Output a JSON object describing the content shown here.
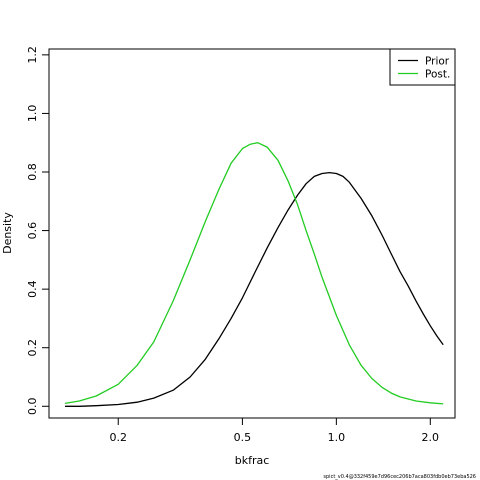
{
  "chart_data": {
    "type": "line",
    "xlabel": "bkfrac",
    "ylabel": "Density",
    "x_scale": "log",
    "xlim": [
      0.12,
      2.4
    ],
    "ylim": [
      -0.04,
      1.22
    ],
    "x_ticks": [
      0.2,
      0.5,
      1.0,
      2.0
    ],
    "x_tick_labels": [
      "0.2",
      "0.5",
      "1.0",
      "2.0"
    ],
    "y_ticks": [
      0,
      0.2,
      0.4,
      0.6,
      0.8,
      1.0,
      1.2
    ],
    "y_tick_labels": [
      "0.0",
      "0.2",
      "0.4",
      "0.6",
      "0.8",
      "1.0",
      "1.2"
    ],
    "grid": false,
    "legend_position": "top-right",
    "series": [
      {
        "name": "Prior",
        "color": "#000000",
        "x": [
          0.135,
          0.15,
          0.17,
          0.2,
          0.23,
          0.26,
          0.3,
          0.34,
          0.38,
          0.42,
          0.46,
          0.5,
          0.55,
          0.6,
          0.65,
          0.7,
          0.75,
          0.8,
          0.85,
          0.9,
          0.95,
          1.0,
          1.05,
          1.1,
          1.2,
          1.3,
          1.4,
          1.5,
          1.6,
          1.7,
          1.8,
          1.9,
          2.0,
          2.1,
          2.2
        ],
        "y": [
          0.0,
          0.0,
          0.002,
          0.006,
          0.014,
          0.028,
          0.055,
          0.1,
          0.16,
          0.23,
          0.3,
          0.37,
          0.46,
          0.54,
          0.61,
          0.67,
          0.72,
          0.76,
          0.785,
          0.795,
          0.798,
          0.795,
          0.785,
          0.765,
          0.71,
          0.65,
          0.585,
          0.52,
          0.46,
          0.41,
          0.36,
          0.315,
          0.275,
          0.24,
          0.21
        ]
      },
      {
        "name": "Post.",
        "color": "#22cc22",
        "x": [
          0.135,
          0.15,
          0.17,
          0.2,
          0.23,
          0.26,
          0.3,
          0.34,
          0.38,
          0.42,
          0.46,
          0.5,
          0.53,
          0.56,
          0.6,
          0.65,
          0.7,
          0.75,
          0.8,
          0.85,
          0.9,
          1.0,
          1.1,
          1.2,
          1.3,
          1.4,
          1.5,
          1.6,
          1.8,
          2.0,
          2.2
        ],
        "y": [
          0.01,
          0.018,
          0.035,
          0.075,
          0.14,
          0.22,
          0.36,
          0.5,
          0.63,
          0.74,
          0.83,
          0.88,
          0.895,
          0.9,
          0.885,
          0.84,
          0.77,
          0.69,
          0.6,
          0.52,
          0.44,
          0.31,
          0.21,
          0.14,
          0.095,
          0.065,
          0.045,
          0.032,
          0.018,
          0.012,
          0.008
        ]
      }
    ],
    "footnote": "spict_v0.4@332f459e7d96cec206b7aca803fdb0eb73eba526"
  }
}
